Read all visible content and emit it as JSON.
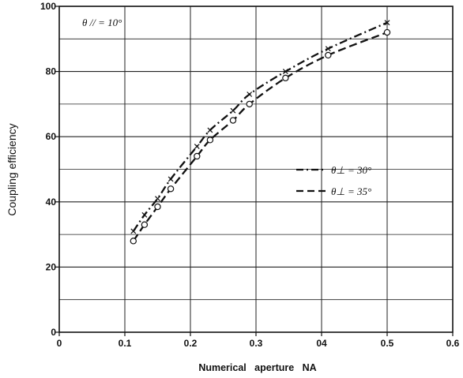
{
  "chart_data": {
    "type": "line",
    "title": "",
    "xlabel": "Numerical   aperture   NA",
    "ylabel": "Coupling efficiency",
    "xlim": [
      0,
      0.6
    ],
    "ylim": [
      0,
      100
    ],
    "x_tick_labels": [
      "0",
      "0.1",
      "0.2",
      "0.3",
      "04",
      "0.5",
      "0.6"
    ],
    "y_tick_labels": [
      "0",
      "20",
      "40",
      "60",
      "80",
      "100"
    ],
    "grid": true,
    "legend_position": "center-right",
    "annotation": "θ // = 10°",
    "series": [
      {
        "name": "θ⊥ = 30°",
        "style": "dash-dot",
        "marker": "cross",
        "x": [
          0.113,
          0.13,
          0.15,
          0.17,
          0.21,
          0.23,
          0.265,
          0.29,
          0.345,
          0.41,
          0.5
        ],
        "y": [
          31,
          36,
          41,
          47,
          57,
          62,
          68,
          73,
          80,
          87,
          95
        ]
      },
      {
        "name": "θ⊥ = 35°",
        "style": "dashed",
        "marker": "circle",
        "x": [
          0.113,
          0.13,
          0.15,
          0.17,
          0.21,
          0.23,
          0.265,
          0.29,
          0.345,
          0.41,
          0.5
        ],
        "y": [
          28,
          33,
          38.5,
          44,
          54,
          59,
          65,
          70,
          78,
          85,
          92
        ]
      }
    ]
  }
}
